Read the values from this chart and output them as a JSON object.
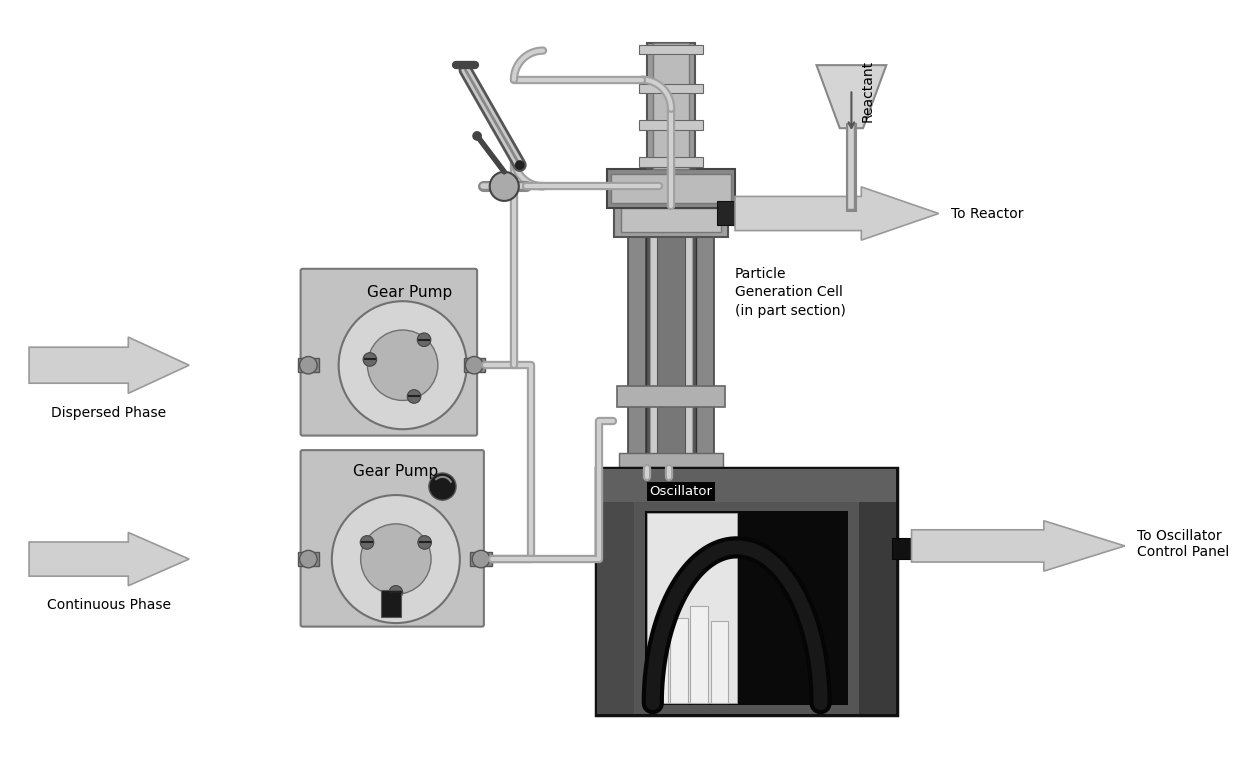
{
  "bg": "#ffffff",
  "labels": {
    "dispersed_phase": "Dispersed Phase",
    "continuous_phase": "Continuous Phase",
    "gear_pump": "Gear Pump",
    "oscillator": "Oscillator",
    "particle_cell": "Particle\nGeneration Cell\n(in part section)",
    "to_reactor": "To Reactor",
    "to_oscillator": "To Oscillator\nControl Panel",
    "reactant": "Reactant"
  },
  "colors": {
    "gray_box": "#c2c2c2",
    "gray_gear": "#d5d5d5",
    "gray_inner": "#b0b0b0",
    "gray_tube": "#a0a0a0",
    "gray_tube_inner": "#d8d8d8",
    "gray_cell": "#999999",
    "gray_cell_flange": "#bbbbbb",
    "osc_outer": "#222222",
    "osc_mid": "#444444",
    "osc_inner_bg": "#666666",
    "osc_white": "#e8e8e8",
    "dark": "#303030",
    "arrow_fill": "#d0d0d0",
    "arrow_edge": "#999999"
  }
}
